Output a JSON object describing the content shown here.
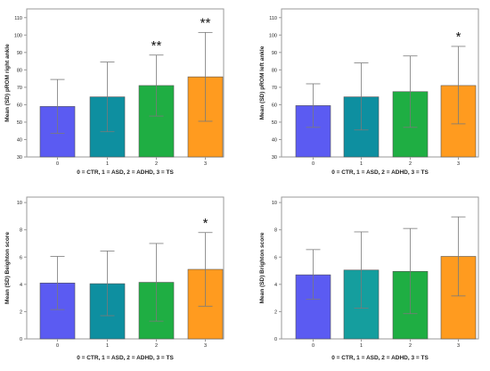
{
  "chart_data": [
    {
      "type": "bar",
      "categories": [
        "0",
        "1",
        "2",
        "3"
      ],
      "values": [
        59,
        64.5,
        71,
        76
      ],
      "error_low": [
        43.5,
        44.5,
        53.5,
        50.5
      ],
      "error_high": [
        74.5,
        84.5,
        88.5,
        101.5
      ],
      "significance": [
        "",
        "",
        "**",
        "**"
      ],
      "xlabel": "0 = CTR, 1 = ASD, 2 = ADHD, 3 = TS",
      "ylabel": "Mean (SD) pROM right ankle",
      "ylim": [
        30,
        115
      ],
      "yticks": [
        30,
        40,
        50,
        60,
        70,
        80,
        90,
        100,
        110
      ],
      "grid": false
    },
    {
      "type": "bar",
      "categories": [
        "0",
        "1",
        "2",
        "3"
      ],
      "values": [
        59.5,
        64.5,
        67.5,
        71
      ],
      "error_low": [
        47,
        45.5,
        47,
        49
      ],
      "error_high": [
        72,
        84,
        88,
        93.5
      ],
      "significance": [
        "",
        "",
        "",
        "*"
      ],
      "xlabel": "0 = CTR, 1 = ASD, 2 = ADHD, 3 = TS",
      "ylabel": "Mean (SD) pROM left ankle",
      "ylim": [
        30,
        115
      ],
      "yticks": [
        30,
        40,
        50,
        60,
        70,
        80,
        90,
        100,
        110
      ],
      "grid": false
    },
    {
      "type": "bar",
      "categories": [
        "0",
        "1",
        "2",
        "3"
      ],
      "values": [
        4.1,
        4.05,
        4.15,
        5.1
      ],
      "error_low": [
        2.15,
        1.7,
        1.3,
        2.4
      ],
      "error_high": [
        6.05,
        6.45,
        7.0,
        7.8
      ],
      "significance": [
        "",
        "",
        "",
        "*"
      ],
      "xlabel": "0 = CTR, 1 = ASD, 2 = ADHD, 3 = TS",
      "ylabel": "Mean (SD) Beighton score",
      "ylim": [
        0,
        10.4
      ],
      "yticks": [
        0,
        2,
        4,
        6,
        8,
        10
      ],
      "grid": false
    },
    {
      "type": "bar",
      "categories": [
        "0",
        "1",
        "2",
        "3"
      ],
      "values": [
        4.7,
        5.05,
        4.95,
        6.05
      ],
      "error_low": [
        2.9,
        2.25,
        1.85,
        3.15
      ],
      "error_high": [
        6.55,
        7.85,
        8.1,
        8.95
      ],
      "significance": [
        "",
        "",
        "",
        ""
      ],
      "xlabel": "0 = CTR, 1 = ASD, 2 = ADHD, 3 = TS",
      "ylabel": "Mean (SD) Brighton score",
      "ylim": [
        0,
        10.4
      ],
      "yticks": [
        0,
        2,
        4,
        6,
        8,
        10
      ],
      "grid": false
    }
  ],
  "colors": {
    "bars": [
      "#5b5bf2",
      "#0e8fa0",
      "#1fae43",
      "#ff9b1f"
    ],
    "bars_panel4": [
      "#5b5bf2",
      "#159e9e",
      "#1fae43",
      "#ff9b1f"
    ],
    "error": "#7a7a7a",
    "frame": "#9a9a9a",
    "text": "#222222"
  }
}
